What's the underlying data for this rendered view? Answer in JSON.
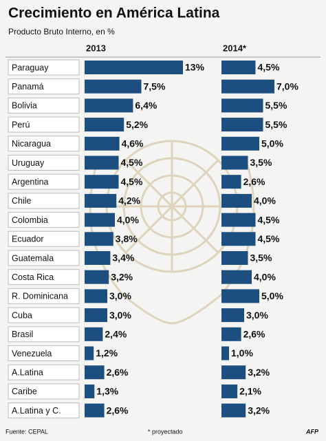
{
  "chart_data": {
    "type": "bar",
    "orientation": "horizontal",
    "title": "Crecimiento en América Latina",
    "subtitle": "Producto Bruto Interno, en %",
    "categories": [
      "Paraguay",
      "Panamá",
      "Bolivia",
      "Perú",
      "Nicaragua",
      "Uruguay",
      "Argentina",
      "Chile",
      "Colombia",
      "Ecuador",
      "Guatemala",
      "Costa Rica",
      "R. Dominicana",
      "Cuba",
      "Brasil",
      "Venezuela",
      "A.Latina",
      "Caribe",
      "A.Latina y C."
    ],
    "series": [
      {
        "name": "2013",
        "color": "#1c4f7f",
        "values": [
          13,
          7.5,
          6.4,
          5.2,
          4.6,
          4.5,
          4.5,
          4.2,
          4.0,
          3.8,
          3.4,
          3.2,
          3.0,
          3.0,
          2.4,
          1.2,
          2.6,
          1.3,
          2.6
        ],
        "value_labels": [
          "13%",
          "7,5%",
          "6,4%",
          "5,2%",
          "4,6%",
          "4,5%",
          "4,5%",
          "4,2%",
          "4,0%",
          "3,8%",
          "3,4%",
          "3,2%",
          "3,0%",
          "3,0%",
          "2,4%",
          "1,2%",
          "2,6%",
          "1,3%",
          "2,6%"
        ]
      },
      {
        "name": "2014*",
        "color": "#1c4f7f",
        "values": [
          4.5,
          7.0,
          5.5,
          5.5,
          5.0,
          3.5,
          2.6,
          4.0,
          4.5,
          4.5,
          3.5,
          4.0,
          5.0,
          3.0,
          2.6,
          1.0,
          3.2,
          2.1,
          3.2
        ],
        "value_labels": [
          "4,5%",
          "7,0%",
          "5,5%",
          "5,5%",
          "5,0%",
          "3,5%",
          "2,6%",
          "4,0%",
          "4,5%",
          "4,5%",
          "3,5%",
          "4,0%",
          "5,0%",
          "3,0%",
          "2,6%",
          "1,0%",
          "3,2%",
          "2,1%",
          "3,2%"
        ]
      }
    ],
    "source": "Fuente: CEPAL",
    "note": "* proyectado",
    "credit": "AFP"
  }
}
